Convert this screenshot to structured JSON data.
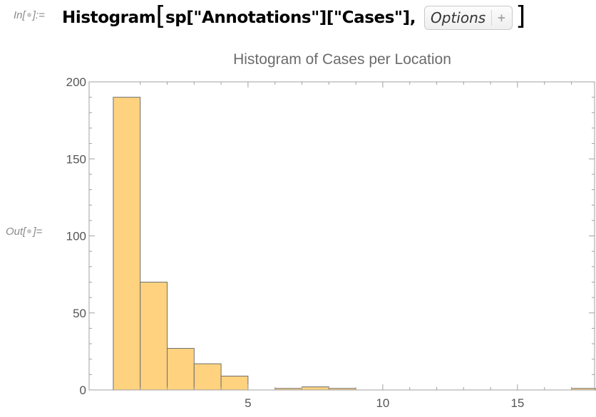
{
  "cell": {
    "in_prefix": "In[",
    "in_suffix": "]:=",
    "out_prefix": "Out[",
    "out_suffix": "]=",
    "input_code": "Histogram",
    "input_args": "sp[\"Annotations\"][\"Cases\"],",
    "open_bracket": "[",
    "close_bracket": "]",
    "options_label": "Options",
    "options_plus": "+"
  },
  "chart_data": {
    "type": "bar",
    "title": "Histogram of Cases per Location",
    "xlabel": "",
    "ylabel": "",
    "bin_width": 1,
    "bins": [
      {
        "x0": 0,
        "x1": 1,
        "count": 190
      },
      {
        "x0": 1,
        "x1": 2,
        "count": 70
      },
      {
        "x0": 2,
        "x1": 3,
        "count": 27
      },
      {
        "x0": 3,
        "x1": 4,
        "count": 17
      },
      {
        "x0": 4,
        "x1": 5,
        "count": 9
      },
      {
        "x0": 5,
        "x1": 6,
        "count": 0
      },
      {
        "x0": 6,
        "x1": 7,
        "count": 1
      },
      {
        "x0": 7,
        "x1": 8,
        "count": 2
      },
      {
        "x0": 8,
        "x1": 9,
        "count": 1
      },
      {
        "x0": 17,
        "x1": 18,
        "count": 1
      }
    ],
    "xlim": [
      0,
      18
    ],
    "ylim": [
      0,
      200
    ],
    "x_ticks": [
      5,
      10,
      15
    ],
    "y_ticks": [
      0,
      50,
      100,
      150,
      200
    ],
    "bar_color": "#fed27f",
    "bar_edge_color": "#6e6e6e",
    "frame_color": "#a0a0a0",
    "title_color": "#6b6b6b",
    "tick_label_color": "#555555",
    "grid": false
  }
}
